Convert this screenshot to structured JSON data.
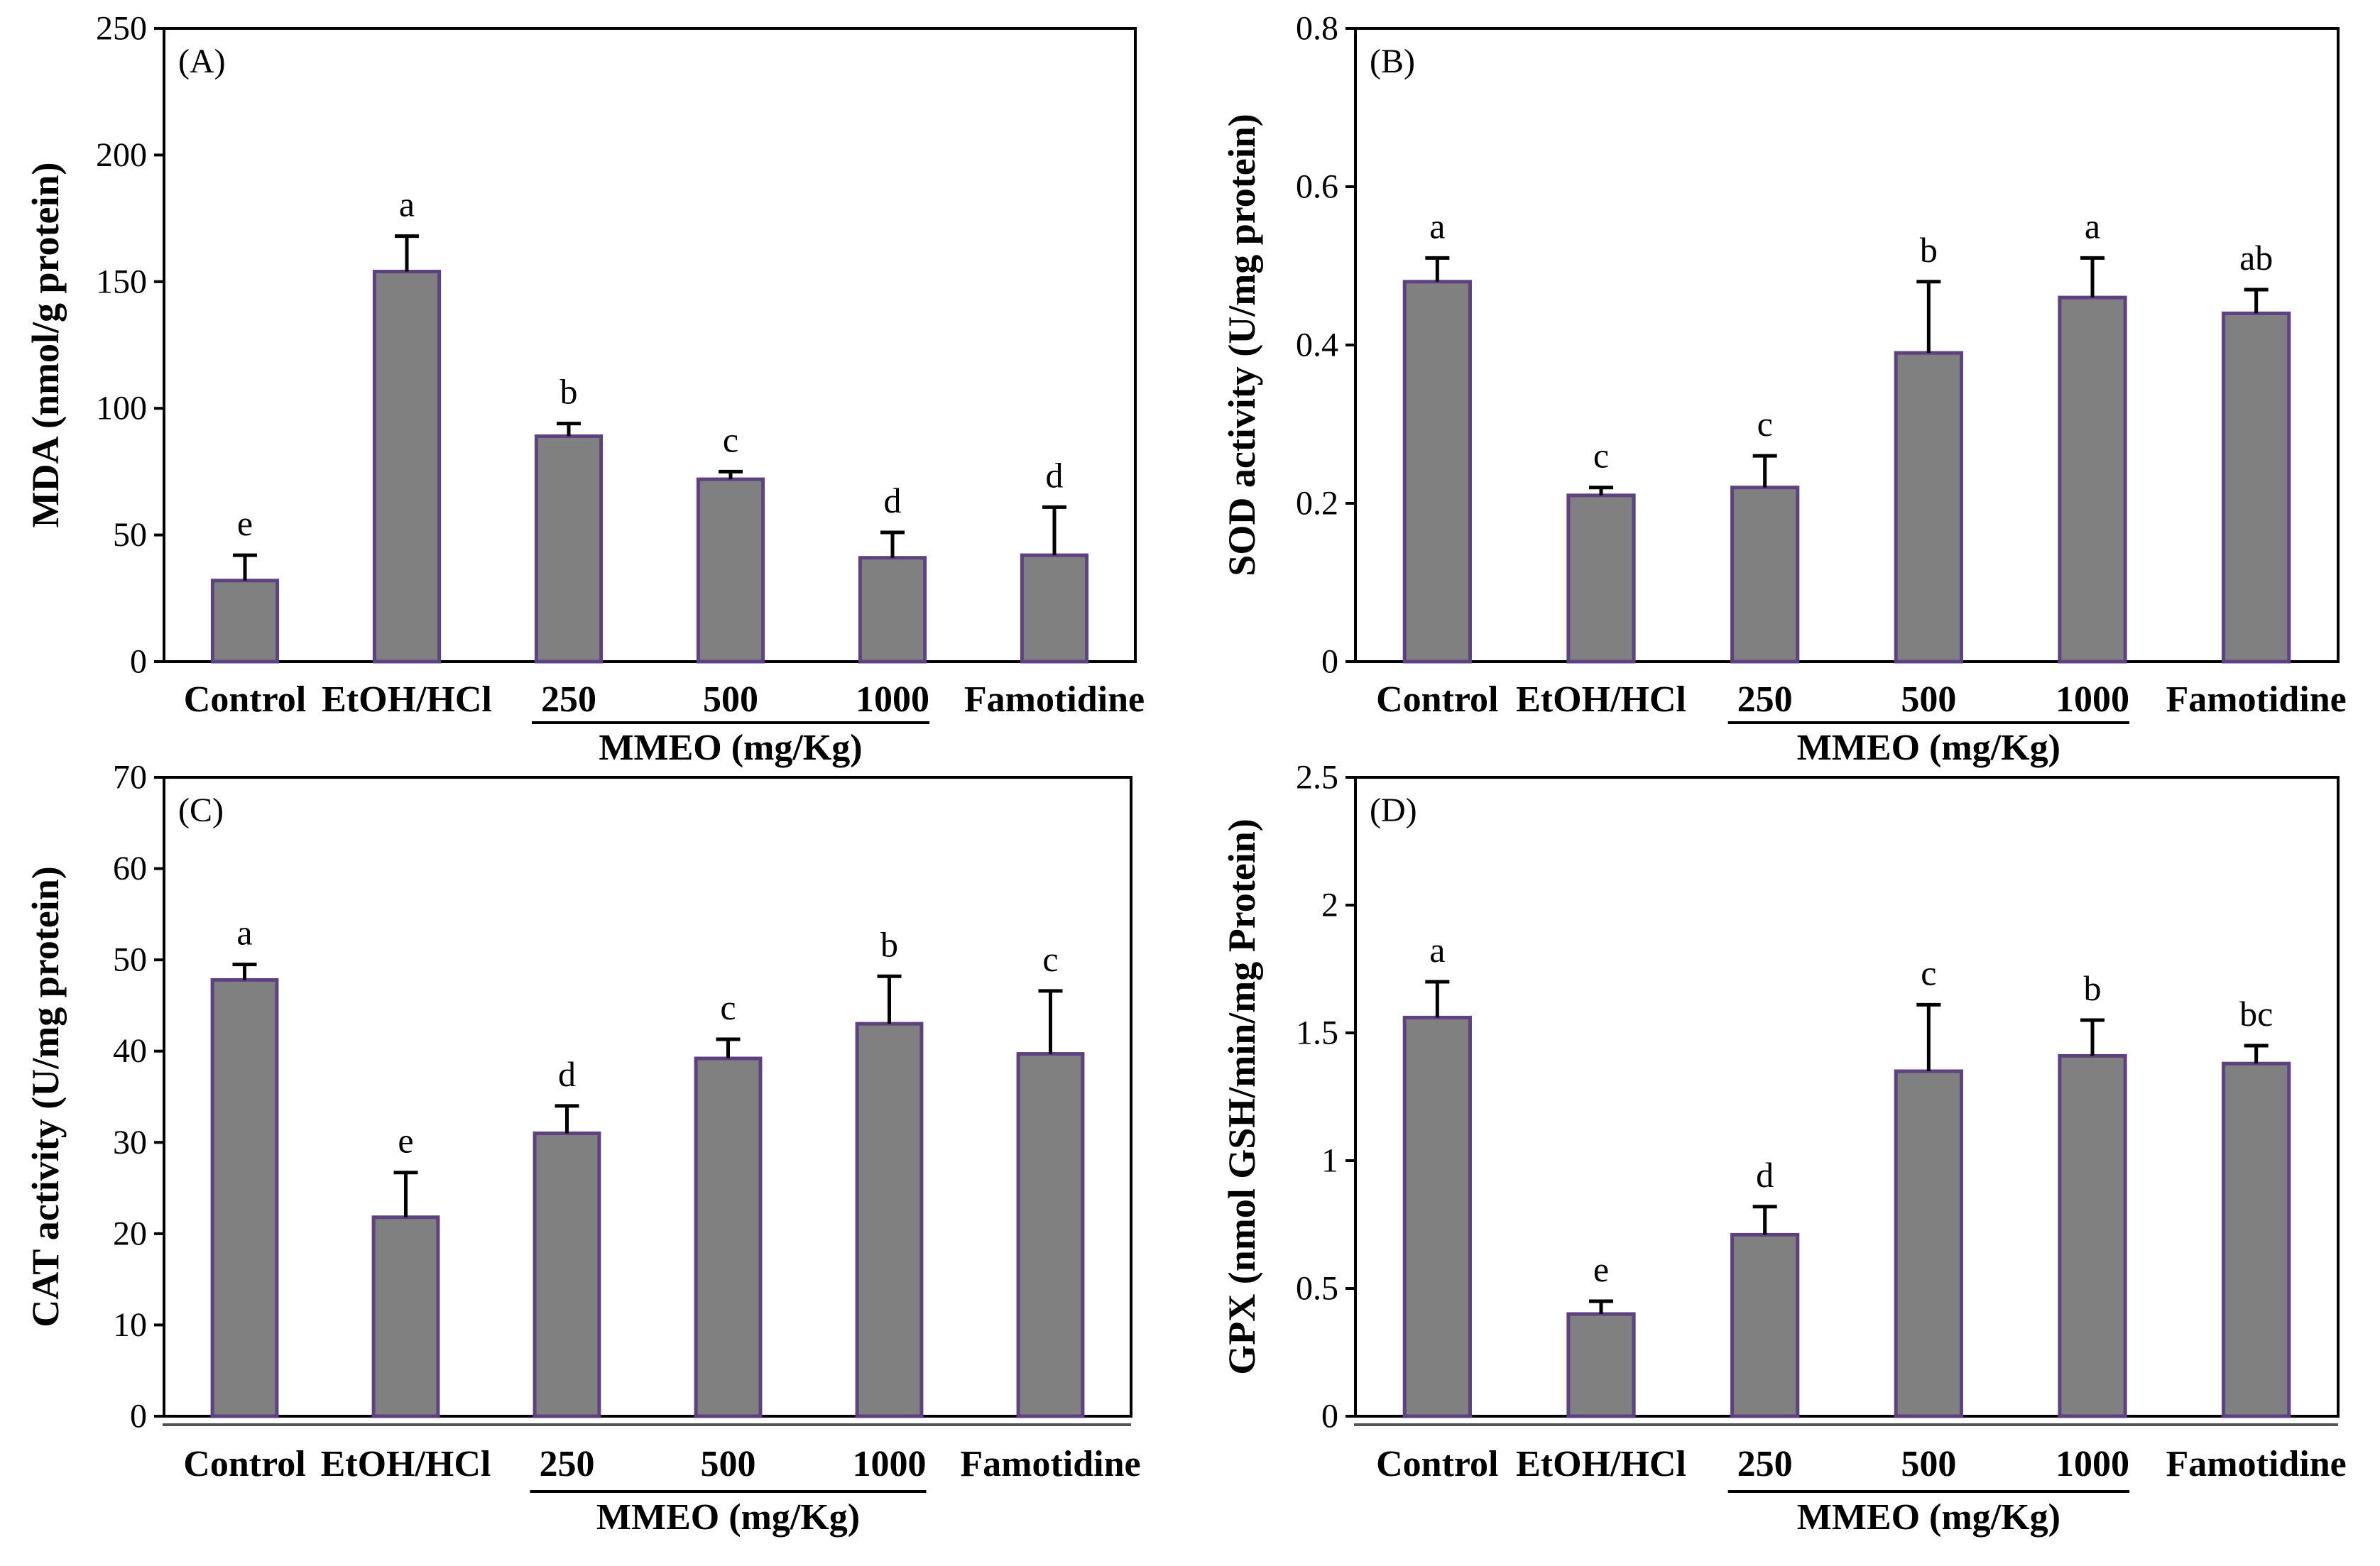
{
  "colors": {
    "bar_fill": "#808080",
    "bar_edge": "#5e4181",
    "error_bar": "#000000",
    "axis": "#000000"
  },
  "chart_data": [
    {
      "type": "bar",
      "panel_label": "(A)",
      "categories": [
        "Control",
        "EtOH/HCl",
        "250",
        "500",
        "1000",
        "Famotidine"
      ],
      "values": [
        32,
        154,
        89,
        72,
        41,
        42
      ],
      "errors": [
        10,
        14,
        5,
        3,
        10,
        19
      ],
      "letters": [
        "e",
        "a",
        "b",
        "c",
        "d",
        "d"
      ],
      "ylabel": "MDA (nmol/g protein)",
      "group": {
        "label": "MMEO (mg/Kg)",
        "from": 2,
        "to": 4
      },
      "ylim": [
        0,
        250
      ],
      "yticks": [
        0,
        50,
        100,
        150,
        200,
        250
      ],
      "grid": false
    },
    {
      "type": "bar",
      "panel_label": "(B)",
      "categories": [
        "Control",
        "EtOH/HCl",
        "250",
        "500",
        "1000",
        "Famotidine"
      ],
      "values": [
        0.48,
        0.21,
        0.22,
        0.39,
        0.46,
        0.44
      ],
      "errors": [
        0.03,
        0.01,
        0.04,
        0.09,
        0.05,
        0.03
      ],
      "letters": [
        "a",
        "c",
        "c",
        "b",
        "a",
        "ab"
      ],
      "ylabel": "SOD activity (U/mg protein)",
      "group": {
        "label": "MMEO (mg/Kg)",
        "from": 2,
        "to": 4
      },
      "ylim": [
        0,
        0.8
      ],
      "yticks": [
        0,
        0.2,
        0.4,
        0.6,
        0.8
      ],
      "grid": false
    },
    {
      "type": "bar",
      "panel_label": "(C)",
      "categories": [
        "Control",
        "EtOH/HCl",
        "250",
        "500",
        "1000",
        "Famotidine"
      ],
      "values": [
        47.8,
        21.8,
        31.0,
        39.2,
        43.0,
        39.7
      ],
      "errors": [
        1.7,
        4.9,
        3.0,
        2.1,
        5.2,
        6.9
      ],
      "letters": [
        "a",
        "e",
        "d",
        "c",
        "b",
        "c"
      ],
      "ylabel": "CAT activity (U/mg protein)",
      "group": {
        "label": "MMEO (mg/Kg)",
        "from": 2,
        "to": 4
      },
      "ylim": [
        0,
        70
      ],
      "yticks": [
        0,
        10,
        20,
        30,
        40,
        50,
        60,
        70
      ],
      "grid": false
    },
    {
      "type": "bar",
      "panel_label": "(D)",
      "categories": [
        "Control",
        "EtOH/HCl",
        "250",
        "500",
        "1000",
        "Famotidine"
      ],
      "values": [
        1.56,
        0.4,
        0.71,
        1.35,
        1.41,
        1.38
      ],
      "errors": [
        0.14,
        0.05,
        0.11,
        0.26,
        0.14,
        0.07
      ],
      "letters": [
        "a",
        "e",
        "d",
        "c",
        "b",
        "bc"
      ],
      "ylabel": "GPX (nmol GSH/min/mg Protein)",
      "group": {
        "label": "MMEO (mg/Kg)",
        "from": 2,
        "to": 4
      },
      "ylim": [
        0,
        2.5
      ],
      "yticks": [
        0,
        0.5,
        1,
        1.5,
        2,
        2.5
      ],
      "grid": false
    }
  ]
}
